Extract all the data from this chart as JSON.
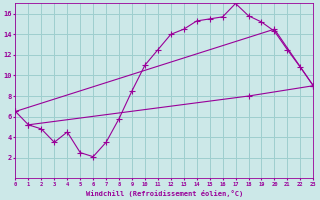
{
  "background_color": "#cce8e8",
  "grid_color": "#9ecece",
  "line_color": "#990099",
  "xlabel": "Windchill (Refroidissement éolien,°C)",
  "ylim": [
    0,
    17
  ],
  "xlim": [
    0,
    23
  ],
  "yticks": [
    2,
    4,
    6,
    8,
    10,
    12,
    14,
    16
  ],
  "xticks": [
    0,
    1,
    2,
    3,
    4,
    5,
    6,
    7,
    8,
    9,
    10,
    11,
    12,
    13,
    14,
    15,
    16,
    17,
    18,
    19,
    20,
    21,
    22,
    23
  ],
  "curve_main_x": [
    0,
    1,
    2,
    3,
    4,
    5,
    6,
    7,
    8,
    9,
    10,
    11,
    12,
    13,
    14,
    15,
    16,
    17,
    18,
    19,
    20,
    21,
    22,
    23
  ],
  "curve_main_y": [
    6.5,
    5.2,
    4.8,
    3.5,
    4.5,
    2.5,
    2.1,
    3.5,
    5.8,
    8.5,
    11.0,
    12.5,
    14.0,
    14.5,
    15.3,
    15.5,
    15.7,
    17.0,
    15.8,
    15.2,
    14.3,
    12.5,
    10.8,
    9.0
  ],
  "curve_line1_x": [
    0,
    20,
    23
  ],
  "curve_line1_y": [
    6.5,
    14.5,
    9.0
  ],
  "curve_line2_x": [
    1,
    18,
    23
  ],
  "curve_line2_y": [
    5.2,
    8.0,
    9.0
  ]
}
